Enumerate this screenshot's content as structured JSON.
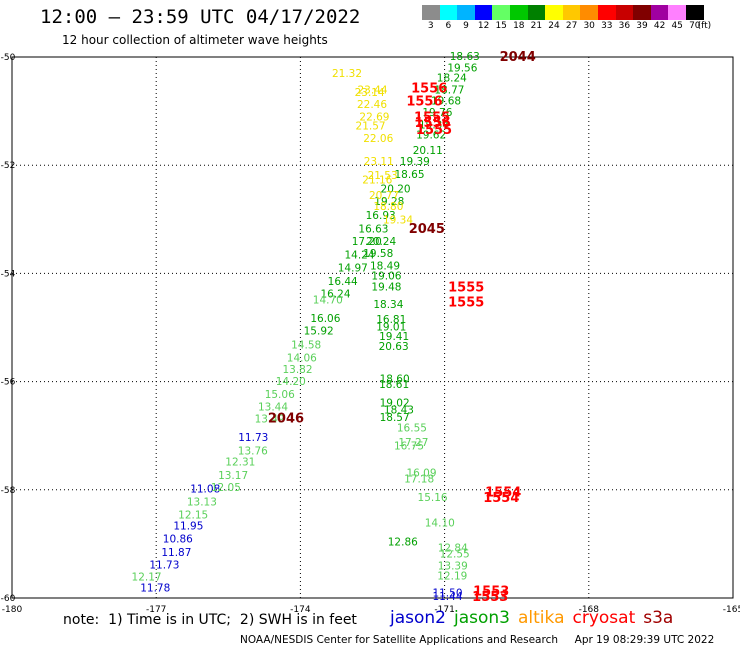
{
  "header": {
    "title": "12:00 – 23:59 UTC 04/17/2022",
    "subtitle": "12 hour collection of altimeter wave heights"
  },
  "color_scale": {
    "bins": [
      "3",
      "6",
      "9",
      "12",
      "15",
      "18",
      "21",
      "24",
      "27",
      "30",
      "33",
      "36",
      "39",
      "42",
      "45",
      "70"
    ],
    "colors": [
      "#8c8c8c",
      "#00ffff",
      "#00b4ff",
      "#0000ff",
      "#64ff64",
      "#00c800",
      "#008000",
      "#ffff00",
      "#ffc800",
      "#ff8c00",
      "#ff0000",
      "#c80000",
      "#800000",
      "#a000a0",
      "#ff80ff",
      "#000000"
    ],
    "unit": "(ft)"
  },
  "footer": {
    "note": "note:  1) Time is in UTC;  2) SWH is in feet",
    "satellites": [
      {
        "name": "jason2",
        "color": "#0000cc"
      },
      {
        "name": "jason3",
        "color": "#00a000"
      },
      {
        "name": "altika",
        "color": "#ff9900"
      },
      {
        "name": "cryosat",
        "color": "#ff0000"
      },
      {
        "name": "s3a",
        "color": "#a00000"
      }
    ],
    "credit": "NOAA/NESDIS Center for Satellite Applications and Research     Apr 19 08:29:39 UTC 2022"
  },
  "chart_data": {
    "type": "scatter",
    "xlim": [
      -180,
      -165
    ],
    "ylim": [
      -60,
      -50
    ],
    "x_ticks": [
      "-180",
      "-177",
      "-174",
      "-171",
      "-168",
      "-165"
    ],
    "x_tick_values": [
      -180,
      -177,
      -174,
      -171,
      -168,
      -165
    ],
    "y_ticks": [
      "-50",
      "-52",
      "-54",
      "-56",
      "-58",
      "-60"
    ],
    "y_tick_values": [
      -50,
      -52,
      -54,
      -56,
      -58,
      -60
    ],
    "grid": true,
    "series": [
      {
        "name": "jason2",
        "color": "#0000cc",
        "points": [
          {
            "x": -174.98,
            "y": -57.02,
            "label": "11.73"
          },
          {
            "x": -175.98,
            "y": -57.98,
            "label": "11.08"
          },
          {
            "x": -176.33,
            "y": -58.66,
            "label": "11.95"
          },
          {
            "x": -176.55,
            "y": -58.9,
            "label": "10.86"
          },
          {
            "x": -176.58,
            "y": -59.15,
            "label": "11.87"
          },
          {
            "x": -176.83,
            "y": -59.38,
            "label": "11.73"
          },
          {
            "x": -177.02,
            "y": -59.81,
            "label": "11.78"
          },
          {
            "x": -170.94,
            "y": -59.9,
            "label": "11.50"
          },
          {
            "x": -170.94,
            "y": -59.96,
            "label": "11.44"
          }
        ]
      },
      {
        "name": "jason3",
        "color": "#00a000",
        "points": [
          {
            "x": -170.58,
            "y": -49.98,
            "label": "18.63"
          },
          {
            "x": -170.63,
            "y": -50.19,
            "label": "19.56"
          },
          {
            "x": -170.85,
            "y": -50.38,
            "label": "18.24"
          },
          {
            "x": -170.9,
            "y": -50.6,
            "label": "18.77"
          },
          {
            "x": -170.97,
            "y": -50.8,
            "label": "19.68"
          },
          {
            "x": -171.15,
            "y": -51.02,
            "label": "19.76"
          },
          {
            "x": -171.22,
            "y": -51.25,
            "label": "19.34"
          },
          {
            "x": -171.28,
            "y": -51.43,
            "label": "19.62"
          },
          {
            "x": -171.35,
            "y": -51.72,
            "label": "20.11"
          },
          {
            "x": -171.62,
            "y": -51.92,
            "label": "19.39"
          },
          {
            "x": -171.73,
            "y": -52.16,
            "label": "18.65"
          },
          {
            "x": -172.02,
            "y": -52.43,
            "label": "20.20"
          },
          {
            "x": -172.15,
            "y": -52.66,
            "label": "19.28"
          },
          {
            "x": -172.33,
            "y": -52.92,
            "label": "16.93"
          },
          {
            "x": -172.48,
            "y": -53.17,
            "label": "16.63"
          },
          {
            "x": -172.62,
            "y": -53.4,
            "label": "17.20"
          },
          {
            "x": -172.32,
            "y": -53.4,
            "label": "20.24"
          },
          {
            "x": -172.77,
            "y": -53.65,
            "label": "14.24"
          },
          {
            "x": -172.38,
            "y": -53.62,
            "label": "19.58"
          },
          {
            "x": -172.91,
            "y": -53.89,
            "label": "14.97"
          },
          {
            "x": -172.24,
            "y": -53.85,
            "label": "18.49"
          },
          {
            "x": -172.21,
            "y": -54.04,
            "label": "19.06"
          },
          {
            "x": -173.12,
            "y": -54.14,
            "label": "16.44"
          },
          {
            "x": -172.21,
            "y": -54.24,
            "label": "19.48"
          },
          {
            "x": -173.27,
            "y": -54.37,
            "label": "16.24"
          },
          {
            "x": -172.17,
            "y": -54.57,
            "label": "18.34"
          },
          {
            "x": -173.48,
            "y": -54.82,
            "label": "16.06"
          },
          {
            "x": -172.11,
            "y": -54.84,
            "label": "16.81"
          },
          {
            "x": -172.11,
            "y": -54.98,
            "label": "19.01"
          },
          {
            "x": -173.62,
            "y": -55.06,
            "label": "15.92"
          },
          {
            "x": -172.05,
            "y": -55.16,
            "label": "19.41"
          },
          {
            "x": -172.06,
            "y": -55.34,
            "label": "20.63"
          },
          {
            "x": -172.04,
            "y": -55.94,
            "label": "18.60"
          },
          {
            "x": -172.05,
            "y": -56.04,
            "label": "18.61"
          },
          {
            "x": -172.04,
            "y": -56.39,
            "label": "19.02"
          },
          {
            "x": -171.95,
            "y": -56.52,
            "label": "18.43"
          },
          {
            "x": -172.04,
            "y": -56.65,
            "label": "18.57"
          },
          {
            "x": -171.87,
            "y": -58.96,
            "label": "12.86"
          }
        ]
      },
      {
        "name": "jason3 (light)",
        "color": "#5ad05a",
        "points": [
          {
            "x": -173.88,
            "y": -55.31,
            "label": "14.58"
          },
          {
            "x": -173.97,
            "y": -55.55,
            "label": "14.06"
          },
          {
            "x": -174.06,
            "y": -55.77,
            "label": "13.82"
          },
          {
            "x": -174.2,
            "y": -55.99,
            "label": "14.20"
          },
          {
            "x": -174.43,
            "y": -56.23,
            "label": "15.06"
          },
          {
            "x": -174.57,
            "y": -56.46,
            "label": "13.44"
          },
          {
            "x": -174.64,
            "y": -56.68,
            "label": "13.49"
          },
          {
            "x": -174.99,
            "y": -57.27,
            "label": "13.76"
          },
          {
            "x": -175.25,
            "y": -57.48,
            "label": "12.31"
          },
          {
            "x": -175.4,
            "y": -57.73,
            "label": "13.17"
          },
          {
            "x": -175.55,
            "y": -57.95,
            "label": "12.05"
          },
          {
            "x": -176.05,
            "y": -58.22,
            "label": "13.13"
          },
          {
            "x": -176.23,
            "y": -58.46,
            "label": "12.15"
          },
          {
            "x": -177.2,
            "y": -59.6,
            "label": "12.17"
          },
          {
            "x": -171.68,
            "y": -56.85,
            "label": "16.55"
          },
          {
            "x": -171.65,
            "y": -57.12,
            "label": "17.27"
          },
          {
            "x": -171.74,
            "y": -57.18,
            "label": "16.75"
          },
          {
            "x": -171.48,
            "y": -57.68,
            "label": "16.09"
          },
          {
            "x": -171.53,
            "y": -57.79,
            "label": "17.18"
          },
          {
            "x": -171.25,
            "y": -58.13,
            "label": "15.16"
          },
          {
            "x": -171.1,
            "y": -58.6,
            "label": "14.10"
          },
          {
            "x": -170.83,
            "y": -59.07,
            "label": "12.84"
          },
          {
            "x": -170.79,
            "y": -59.18,
            "label": "12.55"
          },
          {
            "x": -170.83,
            "y": -59.4,
            "label": "13.39"
          },
          {
            "x": -170.84,
            "y": -59.58,
            "label": "12.19"
          },
          {
            "x": -173.43,
            "y": -54.48,
            "label": "14.70"
          }
        ]
      },
      {
        "name": "altika",
        "color": "#f0e000",
        "points": [
          {
            "x": -173.03,
            "y": -50.3,
            "label": "21.32"
          },
          {
            "x": -172.5,
            "y": -50.6,
            "label": "23.44"
          },
          {
            "x": -172.56,
            "y": -50.65,
            "label": "23.14"
          },
          {
            "x": -172.51,
            "y": -50.87,
            "label": "22.46"
          },
          {
            "x": -172.46,
            "y": -51.1,
            "label": "22.69"
          },
          {
            "x": -172.54,
            "y": -51.27,
            "label": "21.57"
          },
          {
            "x": -172.38,
            "y": -51.5,
            "label": "22.06"
          },
          {
            "x": -172.37,
            "y": -51.92,
            "label": "23.11"
          },
          {
            "x": -172.29,
            "y": -52.18,
            "label": "21.53"
          },
          {
            "x": -172.4,
            "y": -52.26,
            "label": "21.16"
          },
          {
            "x": -172.26,
            "y": -52.55,
            "label": "20.77"
          },
          {
            "x": -172.17,
            "y": -52.75,
            "label": "18.80"
          },
          {
            "x": -171.97,
            "y": -53.0,
            "label": "19.34"
          }
        ]
      },
      {
        "name": "cryosat",
        "color": "#ff0000",
        "points": [
          {
            "x": -171.32,
            "y": -50.58,
            "label": "1556"
          },
          {
            "x": -171.42,
            "y": -50.82,
            "label": "1556"
          },
          {
            "x": -171.26,
            "y": -51.12,
            "label": "1555"
          },
          {
            "x": -171.25,
            "y": -51.22,
            "label": "1556"
          },
          {
            "x": -171.22,
            "y": -51.35,
            "label": "1555"
          },
          {
            "x": -170.55,
            "y": -54.26,
            "label": "1555"
          },
          {
            "x": -170.55,
            "y": -54.54,
            "label": "1555"
          },
          {
            "x": -169.78,
            "y": -58.05,
            "label": "1554"
          },
          {
            "x": -169.82,
            "y": -58.15,
            "label": "1554"
          },
          {
            "x": -170.03,
            "y": -59.88,
            "label": "1553"
          },
          {
            "x": -170.05,
            "y": -59.98,
            "label": "1553"
          }
        ]
      },
      {
        "name": "s3a",
        "color": "#800000",
        "points": [
          {
            "x": -169.48,
            "y": -50.0,
            "label": "2044"
          },
          {
            "x": -171.37,
            "y": -53.18,
            "label": "2045"
          },
          {
            "x": -174.3,
            "y": -56.68,
            "label": "2046"
          }
        ]
      }
    ]
  }
}
